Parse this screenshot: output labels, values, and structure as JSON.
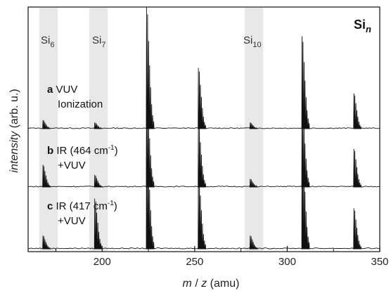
{
  "chart_data": {
    "type": "line",
    "title": "Si",
    "title_subscript": "n",
    "xlabel": {
      "italic": "m",
      "sep": " / ",
      "italic2": "z",
      "unit": " (amu)"
    },
    "ylabel": {
      "italic": "intensity",
      "unit": " (arb. u.)"
    },
    "xlim": [
      160,
      350
    ],
    "xticks": [
      200,
      250,
      300,
      350
    ],
    "highlight_bands": [
      {
        "label": "Si",
        "sub": "6",
        "x0": 166,
        "x1": 176
      },
      {
        "label": "Si",
        "sub": "7",
        "x0": 193,
        "x1": 203
      },
      {
        "label": "Si",
        "sub": "10",
        "x0": 277,
        "x1": 287
      }
    ],
    "peak_groups_x": [
      168,
      196,
      224,
      252,
      280,
      308,
      336
    ],
    "series": [
      {
        "bold": "a",
        "text": " VUV",
        "text2": "Ionization",
        "peak_heights": [
          0.07,
          0.05,
          1.0,
          0.5,
          0.05,
          0.76,
          0.29
        ]
      },
      {
        "bold": "b",
        "text": " IR (464 cm",
        "sup": "-1",
        "text_end": ")",
        "text2": "+VUV",
        "peak_heights": [
          0.22,
          0.12,
          0.93,
          0.62,
          0.08,
          0.83,
          0.38
        ]
      },
      {
        "bold": "c",
        "text": " IR (417 cm",
        "sup": "-1",
        "text_end": ")",
        "text2": "+VUV",
        "peak_heights": [
          0.11,
          0.42,
          0.95,
          0.62,
          0.11,
          0.92,
          0.34
        ]
      }
    ]
  }
}
